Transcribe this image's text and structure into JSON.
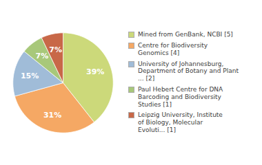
{
  "chart_data": {
    "type": "pie",
    "categories": [
      "Mined from GenBank, NCBI [5]",
      "Centre for Biodiversity\nGenomics [4]",
      "University of Johannesburg,\nDepartment of Botany and Plant\n... [2]",
      "Paul Hebert Centre for DNA\nBarcoding and Biodiversity\nStudies [1]",
      "Leipzig University, Institute\nof Biology, Molecular\nEvoluti... [1]"
    ],
    "values": [
      39,
      31,
      15,
      7,
      7
    ],
    "value_labels": [
      "39%",
      "31%",
      "15%",
      "7%",
      "7%"
    ],
    "colors": [
      "#ccd97a",
      "#f5a864",
      "#a0bcd8",
      "#a8c87a",
      "#c86848"
    ],
    "data_labels": true,
    "legend": "right"
  }
}
